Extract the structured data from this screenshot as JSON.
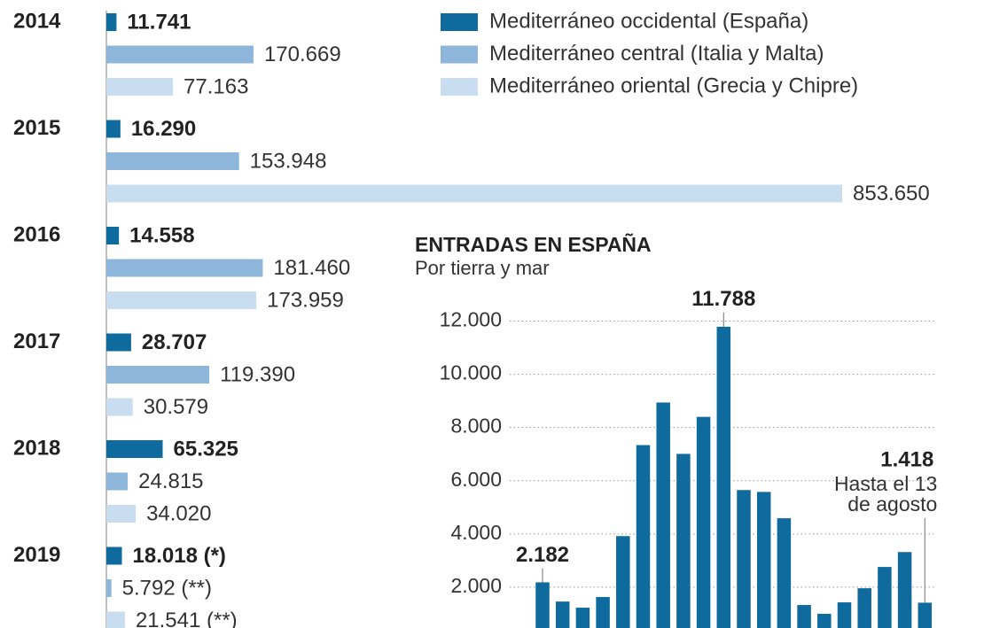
{
  "chart_data": [
    {
      "type": "hbar",
      "categories": [
        "2014",
        "2015",
        "2016",
        "2017",
        "2018",
        "2019"
      ],
      "xlim": [
        0,
        853650
      ],
      "legend": "top-right",
      "series": [
        {
          "name": "Mediterráneo occidental (España)",
          "color": "#0f6a9e",
          "values": [
            11741,
            16290,
            14558,
            28707,
            65325,
            18018
          ],
          "value_labels": [
            "11.741",
            "16.290",
            "14.558",
            "28.707",
            "65.325",
            "18.018 (*)"
          ]
        },
        {
          "name": "Mediterráneo central (Italia y Malta)",
          "color": "#8db6da",
          "values": [
            170669,
            153948,
            181460,
            119390,
            24815,
            5792
          ],
          "value_labels": [
            "170.669",
            "153.948",
            "181.460",
            "119.390",
            "24.815",
            "5.792 (**)"
          ]
        },
        {
          "name": "Mediterráneo oriental (Grecia y Chipre)",
          "color": "#c8ddef",
          "values": [
            77163,
            853650,
            173959,
            30579,
            34020,
            21541
          ],
          "value_labels": [
            "77.163",
            "853.650",
            "173.959",
            "30.579",
            "34.020",
            "21.541 (**)"
          ]
        }
      ]
    },
    {
      "type": "bar",
      "title": "ENTRADAS EN ESPAÑA",
      "subtitle": "Por tierra y mar",
      "categories": [
        null,
        null,
        null,
        null,
        null,
        null,
        null,
        null,
        null,
        null,
        null,
        null,
        null,
        null,
        null,
        null,
        null,
        null,
        null,
        null
      ],
      "values": [
        2182,
        1460,
        1230,
        1630,
        3920,
        7340,
        8940,
        7010,
        8400,
        11788,
        5650,
        5580,
        4590,
        1330,
        1000,
        1430,
        1960,
        2760,
        3320,
        1418
      ],
      "value_labels": [
        "2.182",
        null,
        null,
        null,
        null,
        null,
        null,
        null,
        null,
        "11.788",
        null,
        null,
        null,
        null,
        null,
        null,
        null,
        null,
        null,
        "1.418"
      ],
      "annotations": [
        "Hasta el 13",
        "de agosto"
      ],
      "color": "#0f6a9e",
      "ylim": [
        0,
        12000
      ],
      "yticks": [
        {
          "value": 2000,
          "label": "2.000"
        },
        {
          "value": 4000,
          "label": "4.000"
        },
        {
          "value": 6000,
          "label": "6.000"
        },
        {
          "value": 8000,
          "label": "8.000"
        },
        {
          "value": 10000,
          "label": "10.000"
        },
        {
          "value": 12000,
          "label": "12.000"
        }
      ],
      "grid": true
    }
  ]
}
